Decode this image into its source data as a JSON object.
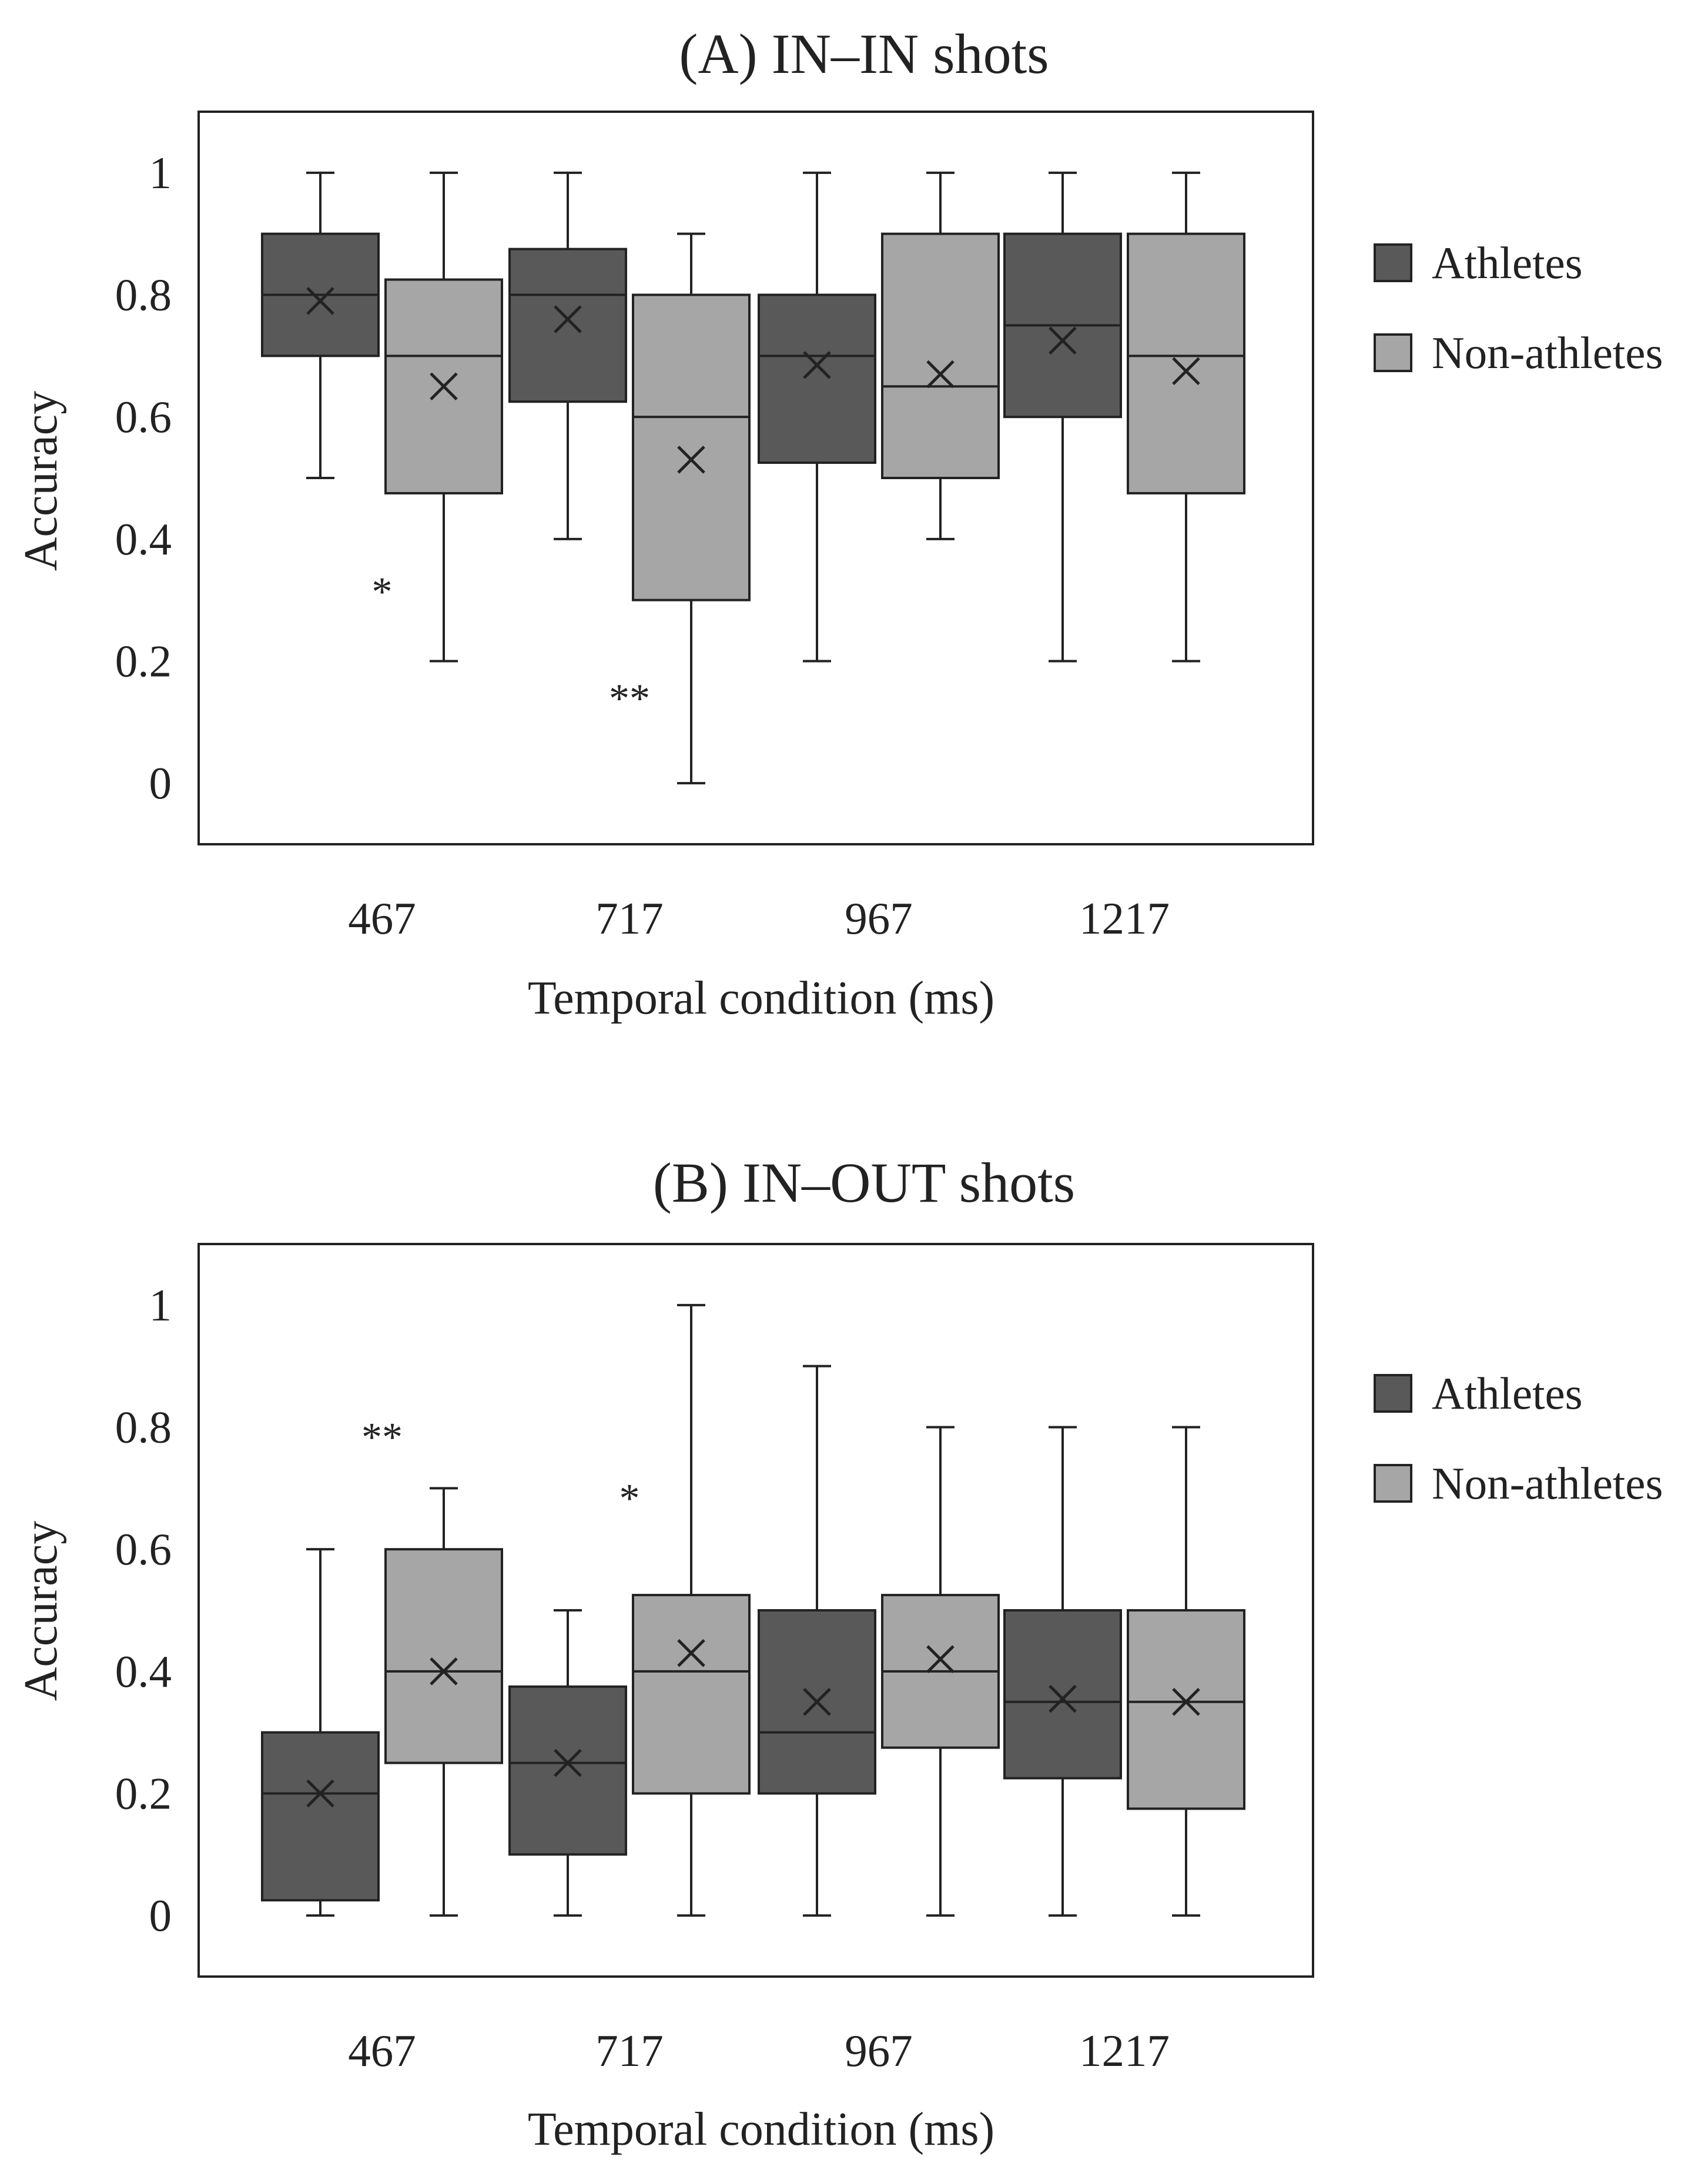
{
  "chart_data": [
    {
      "type": "box",
      "title": "(A) IN–IN shots",
      "xlabel": "Temporal condition (ms)",
      "ylabel": "Accuracy",
      "ylim": [
        -0.1,
        1.1
      ],
      "yticks": [
        0,
        0.2,
        0.4,
        0.6,
        0.8,
        1
      ],
      "ytick_labels": [
        "0",
        "0.2",
        "0.4",
        "0.6",
        "0.8",
        "1"
      ],
      "categories": [
        "467",
        "717",
        "967",
        "1217"
      ],
      "legend": {
        "position": "right",
        "entries": [
          "Athletes",
          "Non-athletes"
        ]
      },
      "series": [
        {
          "name": "Athletes",
          "color": "#595959",
          "boxes": [
            {
              "min": 0.5,
              "q1": 0.7,
              "median": 0.8,
              "q3": 0.9,
              "max": 1.0,
              "mean": 0.79
            },
            {
              "min": 0.4,
              "q1": 0.625,
              "median": 0.8,
              "q3": 0.875,
              "max": 1.0,
              "mean": 0.76
            },
            {
              "min": 0.2,
              "q1": 0.525,
              "median": 0.7,
              "q3": 0.8,
              "max": 1.0,
              "mean": 0.685
            },
            {
              "min": 0.2,
              "q1": 0.6,
              "median": 0.75,
              "q3": 0.9,
              "max": 1.0,
              "mean": 0.725
            }
          ]
        },
        {
          "name": "Non-athletes",
          "color": "#a6a6a6",
          "boxes": [
            {
              "min": 0.2,
              "q1": 0.475,
              "median": 0.7,
              "q3": 0.825,
              "max": 1.0,
              "mean": 0.65
            },
            {
              "min": 0.0,
              "q1": 0.3,
              "median": 0.6,
              "q3": 0.8,
              "max": 0.9,
              "mean": 0.53
            },
            {
              "min": 0.4,
              "q1": 0.5,
              "median": 0.65,
              "q3": 0.9,
              "max": 1.0,
              "mean": 0.67
            },
            {
              "min": 0.2,
              "q1": 0.475,
              "median": 0.7,
              "q3": 0.9,
              "max": 1.0,
              "mean": 0.675
            }
          ]
        }
      ],
      "annotations": [
        {
          "text": "*",
          "category": "467",
          "y": 0.33
        },
        {
          "text": "**",
          "category": "717",
          "y": 0.155
        }
      ]
    },
    {
      "type": "box",
      "title": "(B) IN–OUT shots",
      "xlabel": "Temporal condition (ms)",
      "ylabel": "Accuracy",
      "ylim": [
        -0.1,
        1.1
      ],
      "yticks": [
        0,
        0.2,
        0.4,
        0.6,
        0.8,
        1
      ],
      "ytick_labels": [
        "0",
        "0.2",
        "0.4",
        "0.6",
        "0.8",
        "1"
      ],
      "categories": [
        "467",
        "717",
        "967",
        "1217"
      ],
      "legend": {
        "position": "right",
        "entries": [
          "Athletes",
          "Non-athletes"
        ]
      },
      "series": [
        {
          "name": "Athletes",
          "color": "#595959",
          "boxes": [
            {
              "min": 0.0,
              "q1": 0.025,
              "median": 0.2,
              "q3": 0.3,
              "max": 0.6,
              "mean": 0.2
            },
            {
              "min": 0.0,
              "q1": 0.1,
              "median": 0.25,
              "q3": 0.375,
              "max": 0.5,
              "mean": 0.25
            },
            {
              "min": 0.0,
              "q1": 0.2,
              "median": 0.3,
              "q3": 0.5,
              "max": 0.9,
              "mean": 0.35
            },
            {
              "min": 0.0,
              "q1": 0.225,
              "median": 0.35,
              "q3": 0.5,
              "max": 0.8,
              "mean": 0.355
            }
          ]
        },
        {
          "name": "Non-athletes",
          "color": "#a6a6a6",
          "boxes": [
            {
              "min": 0.0,
              "q1": 0.25,
              "median": 0.4,
              "q3": 0.6,
              "max": 0.7,
              "mean": 0.4
            },
            {
              "min": 0.0,
              "q1": 0.2,
              "median": 0.4,
              "q3": 0.525,
              "max": 1.0,
              "mean": 0.43
            },
            {
              "min": 0.0,
              "q1": 0.275,
              "median": 0.4,
              "q3": 0.525,
              "max": 0.8,
              "mean": 0.42
            },
            {
              "min": 0.0,
              "q1": 0.175,
              "median": 0.35,
              "q3": 0.5,
              "max": 0.8,
              "mean": 0.35
            }
          ]
        }
      ],
      "annotations": [
        {
          "text": "**",
          "category": "467",
          "y": 0.8
        },
        {
          "text": "*",
          "category": "717",
          "y": 0.7
        }
      ]
    }
  ]
}
